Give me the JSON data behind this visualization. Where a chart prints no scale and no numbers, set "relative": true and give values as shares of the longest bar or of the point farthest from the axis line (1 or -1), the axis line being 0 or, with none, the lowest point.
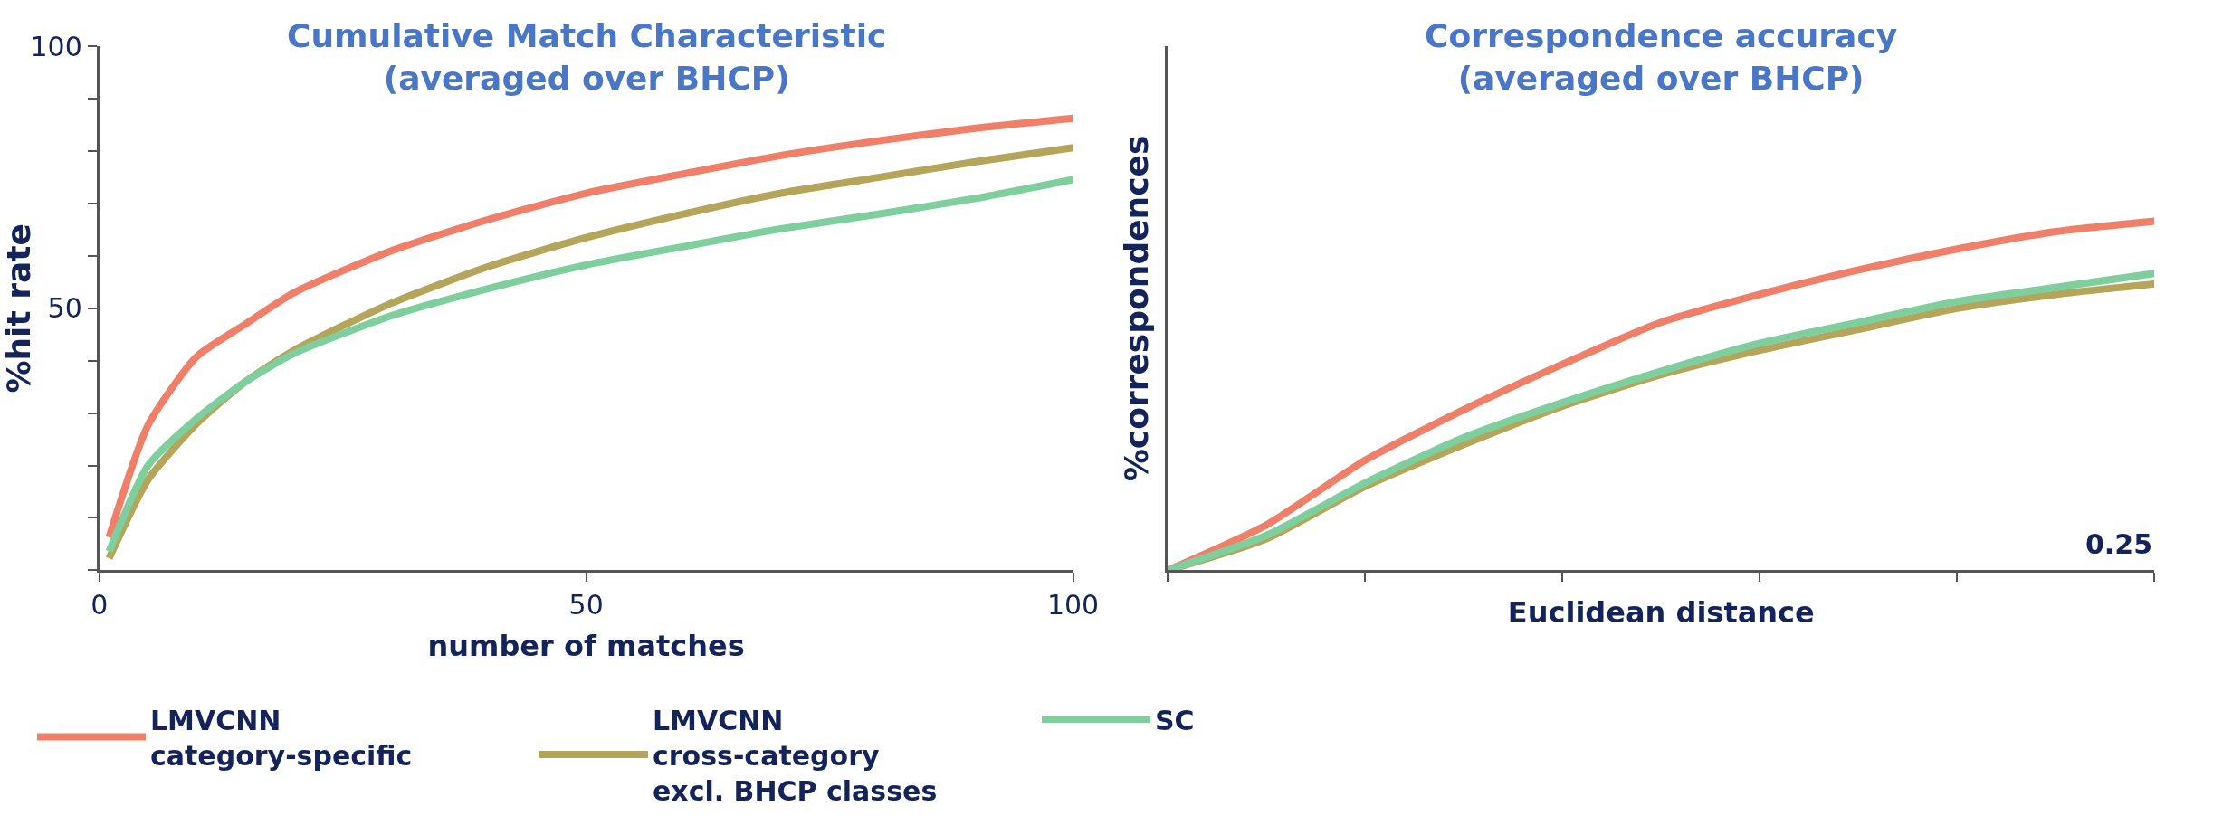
{
  "chart_data": [
    {
      "type": "line",
      "title": "Cumulative Match Characteristic\n(averaged over BHCP)",
      "xlabel": "number of matches",
      "ylabel": "%hit rate",
      "x": [
        1,
        5,
        10,
        15,
        20,
        30,
        40,
        50,
        60,
        70,
        80,
        90,
        100
      ],
      "series": [
        {
          "name": "LMVCNN\ncategory-specific",
          "color": "#f07f6a",
          "values": [
            6.3,
            27.7,
            40.8,
            47,
            53,
            61,
            67,
            72,
            75.7,
            79.2,
            82,
            84.4,
            86.3
          ]
        },
        {
          "name": "LMVCNN\ncross-category\nexcl. BHCP classes",
          "color": "#b5a55a",
          "values": [
            2.3,
            17.3,
            28,
            36,
            42,
            51,
            58,
            63.5,
            68,
            72,
            75,
            78,
            80.7
          ]
        },
        {
          "name": "SC",
          "color": "#7fcf9e",
          "values": [
            3.6,
            20,
            29,
            36,
            41.4,
            48.6,
            53.8,
            58.3,
            61.8,
            65.2,
            68,
            71,
            74.6
          ]
        }
      ],
      "xlim": [
        0,
        100
      ],
      "xticks": [
        0,
        50,
        100
      ],
      "ylim": [
        0,
        100
      ],
      "yticks": [
        {
          "value": 0,
          "label": null
        },
        {
          "value": 10,
          "label": null
        },
        {
          "value": 20,
          "label": null
        },
        {
          "value": 30,
          "label": null
        },
        {
          "value": 40,
          "label": null
        },
        50,
        {
          "value": 60,
          "label": null
        },
        {
          "value": 70,
          "label": null
        },
        {
          "value": 80,
          "label": null
        },
        {
          "value": 90,
          "label": null
        },
        100
      ],
      "legend": "bottom",
      "marker": "none",
      "line_style": "solid"
    },
    {
      "type": "line",
      "title": "Correspondence accuracy\n(averaged over BHCP)",
      "xlabel": "Euclidean distance",
      "ylabel": "%correspondences",
      "relative": true,
      "categories": [
        null,
        null,
        null,
        null,
        null,
        null,
        null,
        null,
        null,
        null,
        null
      ],
      "annotations": [
        "0.25"
      ],
      "series": [
        {
          "color": "#f07f6a",
          "values": [
            0,
            0.13,
            0.315,
            0.46,
            0.59,
            0.71,
            0.79,
            0.86,
            0.92,
            0.97,
            1
          ]
        },
        {
          "color": "#b5a55a",
          "values": [
            0,
            0.09,
            0.24,
            0.36,
            0.47,
            0.56,
            0.63,
            0.69,
            0.75,
            0.79,
            0.82
          ]
        },
        {
          "color": "#7fcf9e",
          "values": [
            0,
            0.1,
            0.25,
            0.38,
            0.48,
            0.57,
            0.65,
            0.71,
            0.77,
            0.81,
            0.85
          ]
        }
      ],
      "marker": "none",
      "line_style": "solid"
    }
  ]
}
